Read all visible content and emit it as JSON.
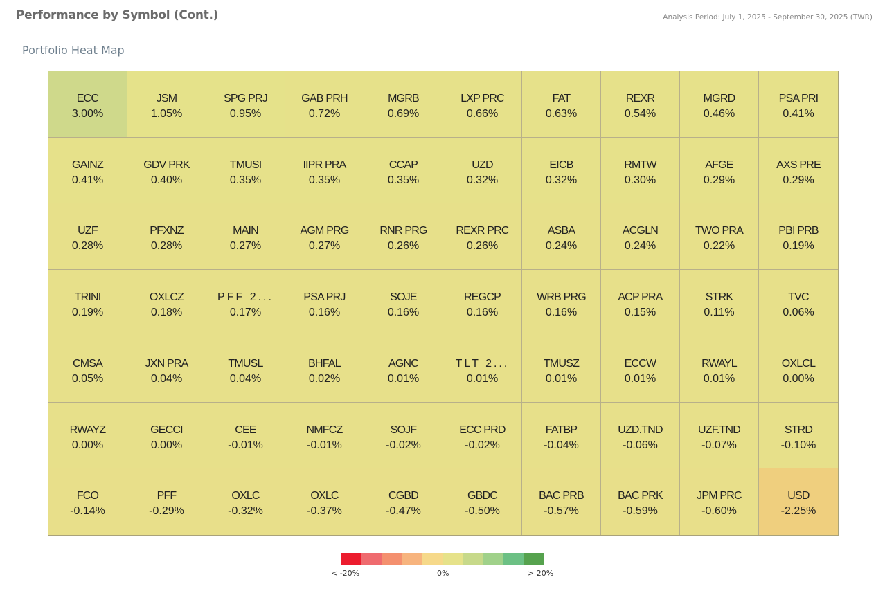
{
  "header": {
    "title": "Performance by Symbol (Cont.)",
    "period": "Analysis Period: July 1, 2025 - September 30, 2025 (TWR)"
  },
  "section_title": "Portfolio Heat Map",
  "legend": {
    "colors": [
      "#ec1c2e",
      "#ef6b6f",
      "#f4906f",
      "#f7b47e",
      "#f6d98a",
      "#e6e28a",
      "#c7d98a",
      "#a0d18a",
      "#6cc084",
      "#56a24e"
    ],
    "labels": [
      "< -20%",
      "0%",
      "> 20%"
    ]
  },
  "chart_data": {
    "type": "heatmap",
    "title": "Portfolio Heat Map",
    "columns": 10,
    "rows": 7,
    "cells": [
      {
        "symbol": "ECC",
        "value": "3.00%",
        "color": "#cfd98b"
      },
      {
        "symbol": "JSM",
        "value": "1.05%",
        "color": "#e5e28a"
      },
      {
        "symbol": "SPG PRJ",
        "value": "0.95%",
        "color": "#e5e28a"
      },
      {
        "symbol": "GAB PRH",
        "value": "0.72%",
        "color": "#e6e18a"
      },
      {
        "symbol": "MGRB",
        "value": "0.69%",
        "color": "#e6e18a"
      },
      {
        "symbol": "LXP PRC",
        "value": "0.66%",
        "color": "#e6e18a"
      },
      {
        "symbol": "FAT",
        "value": "0.63%",
        "color": "#e6e18a"
      },
      {
        "symbol": "REXR",
        "value": "0.54%",
        "color": "#e6e18a"
      },
      {
        "symbol": "MGRD",
        "value": "0.46%",
        "color": "#e6e18a"
      },
      {
        "symbol": "PSA PRI",
        "value": "0.41%",
        "color": "#e6e18a"
      },
      {
        "symbol": "GAINZ",
        "value": "0.41%",
        "color": "#e6e18a"
      },
      {
        "symbol": "GDV PRK",
        "value": "0.40%",
        "color": "#e6e18a"
      },
      {
        "symbol": "TMUSI",
        "value": "0.35%",
        "color": "#e6e18a"
      },
      {
        "symbol": "IIPR PRA",
        "value": "0.35%",
        "color": "#e6e18a"
      },
      {
        "symbol": "CCAP",
        "value": "0.35%",
        "color": "#e6e18a"
      },
      {
        "symbol": "UZD",
        "value": "0.32%",
        "color": "#e6e18a"
      },
      {
        "symbol": "EICB",
        "value": "0.32%",
        "color": "#e6e18a"
      },
      {
        "symbol": "RMTW",
        "value": "0.30%",
        "color": "#e6e18a"
      },
      {
        "symbol": "AFGE",
        "value": "0.29%",
        "color": "#e6e18a"
      },
      {
        "symbol": "AXS PRE",
        "value": "0.29%",
        "color": "#e6e18a"
      },
      {
        "symbol": "UZF",
        "value": "0.28%",
        "color": "#e7e08a"
      },
      {
        "symbol": "PFXNZ",
        "value": "0.28%",
        "color": "#e7e08a"
      },
      {
        "symbol": "MAIN",
        "value": "0.27%",
        "color": "#e7e08a"
      },
      {
        "symbol": "AGM PRG",
        "value": "0.27%",
        "color": "#e7e08a"
      },
      {
        "symbol": "RNR PRG",
        "value": "0.26%",
        "color": "#e7e08a"
      },
      {
        "symbol": "REXR PRC",
        "value": "0.26%",
        "color": "#e7e08a"
      },
      {
        "symbol": "ASBA",
        "value": "0.24%",
        "color": "#e7e08a"
      },
      {
        "symbol": "ACGLN",
        "value": "0.24%",
        "color": "#e7e08a"
      },
      {
        "symbol": "TWO PRA",
        "value": "0.22%",
        "color": "#e7e08a"
      },
      {
        "symbol": "PBI PRB",
        "value": "0.19%",
        "color": "#e7e08a"
      },
      {
        "symbol": "TRINI",
        "value": "0.19%",
        "color": "#e7e08a"
      },
      {
        "symbol": "OXLCZ",
        "value": "0.18%",
        "color": "#e7e08a"
      },
      {
        "symbol": "PFF 2...",
        "value": "0.17%",
        "color": "#e7e08a"
      },
      {
        "symbol": "PSA PRJ",
        "value": "0.16%",
        "color": "#e7e08a"
      },
      {
        "symbol": "SOJE",
        "value": "0.16%",
        "color": "#e7e08a"
      },
      {
        "symbol": "REGCP",
        "value": "0.16%",
        "color": "#e7e08a"
      },
      {
        "symbol": "WRB PRG",
        "value": "0.16%",
        "color": "#e7e08a"
      },
      {
        "symbol": "ACP PRA",
        "value": "0.15%",
        "color": "#e7e08a"
      },
      {
        "symbol": "STRK",
        "value": "0.11%",
        "color": "#e7e08a"
      },
      {
        "symbol": "TVC",
        "value": "0.06%",
        "color": "#e7e08a"
      },
      {
        "symbol": "CMSA",
        "value": "0.05%",
        "color": "#e7e08a"
      },
      {
        "symbol": "JXN PRA",
        "value": "0.04%",
        "color": "#e7e08a"
      },
      {
        "symbol": "TMUSL",
        "value": "0.04%",
        "color": "#e7e08a"
      },
      {
        "symbol": "BHFAL",
        "value": "0.02%",
        "color": "#e7e08a"
      },
      {
        "symbol": "AGNC",
        "value": "0.01%",
        "color": "#e7e08a"
      },
      {
        "symbol": "TLT 2...",
        "value": "0.01%",
        "color": "#e7e08a"
      },
      {
        "symbol": "TMUSZ",
        "value": "0.01%",
        "color": "#e7e08a"
      },
      {
        "symbol": "ECCW",
        "value": "0.01%",
        "color": "#e7e08a"
      },
      {
        "symbol": "RWAYL",
        "value": "0.01%",
        "color": "#e7e08a"
      },
      {
        "symbol": "OXLCL",
        "value": "0.00%",
        "color": "#e7e08a"
      },
      {
        "symbol": "RWAYZ",
        "value": "0.00%",
        "color": "#e7e08a"
      },
      {
        "symbol": "GECCI",
        "value": "0.00%",
        "color": "#e7e08a"
      },
      {
        "symbol": "CEE",
        "value": "-0.01%",
        "color": "#e7e08a"
      },
      {
        "symbol": "NMFCZ",
        "value": "-0.01%",
        "color": "#e7e08a"
      },
      {
        "symbol": "SOJF",
        "value": "-0.02%",
        "color": "#e7e08a"
      },
      {
        "symbol": "ECC PRD",
        "value": "-0.02%",
        "color": "#e7e08a"
      },
      {
        "symbol": "FATBP",
        "value": "-0.04%",
        "color": "#e7e08a"
      },
      {
        "symbol": "UZD.TND",
        "value": "-0.06%",
        "color": "#e7e08a"
      },
      {
        "symbol": "UZF.TND",
        "value": "-0.07%",
        "color": "#e7e08a"
      },
      {
        "symbol": "STRD",
        "value": "-0.10%",
        "color": "#e7e08a"
      },
      {
        "symbol": "FCO",
        "value": "-0.14%",
        "color": "#e8df8a"
      },
      {
        "symbol": "PFF",
        "value": "-0.29%",
        "color": "#e8df8a"
      },
      {
        "symbol": "OXLC",
        "value": "-0.32%",
        "color": "#e8df8a"
      },
      {
        "symbol": "OXLC",
        "value": "-0.37%",
        "color": "#e8df8a"
      },
      {
        "symbol": "CGBD",
        "value": "-0.47%",
        "color": "#e8df8a"
      },
      {
        "symbol": "GBDC",
        "value": "-0.50%",
        "color": "#e8df8a"
      },
      {
        "symbol": "BAC PRB",
        "value": "-0.57%",
        "color": "#e8df8a"
      },
      {
        "symbol": "BAC PRK",
        "value": "-0.59%",
        "color": "#e8df8a"
      },
      {
        "symbol": "JPM PRC",
        "value": "-0.60%",
        "color": "#e8df8a"
      },
      {
        "symbol": "USD",
        "value": "-2.25%",
        "color": "#efcf7e"
      }
    ]
  }
}
